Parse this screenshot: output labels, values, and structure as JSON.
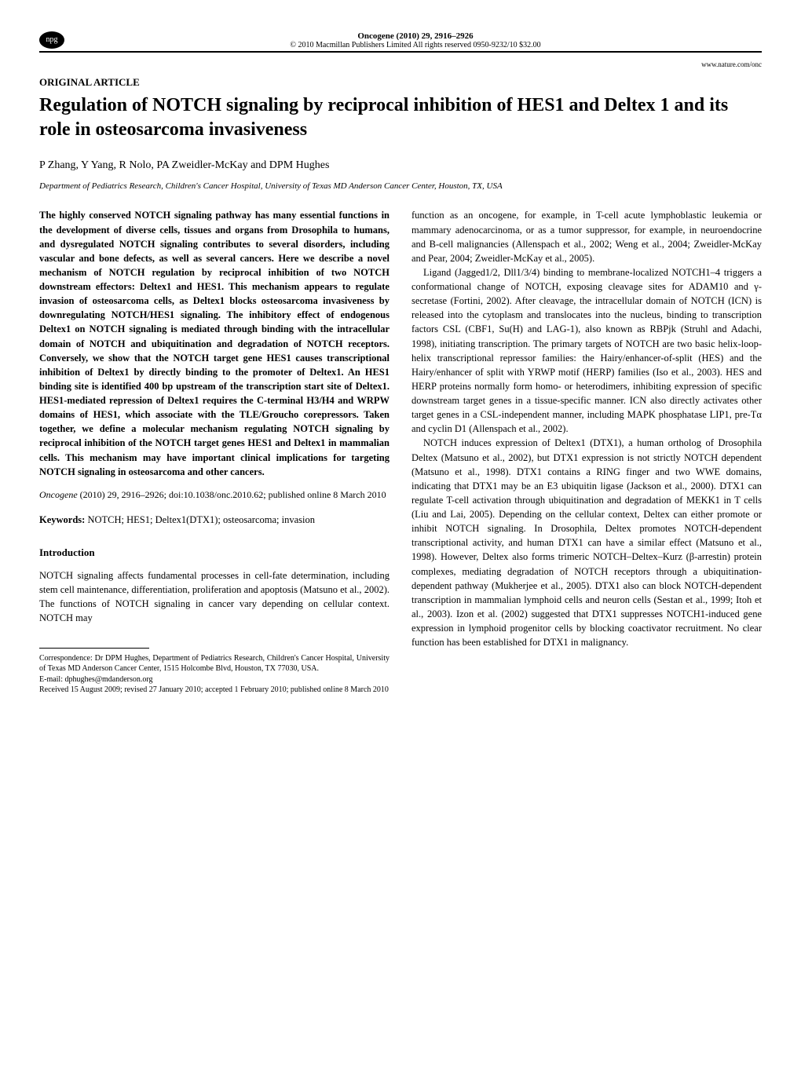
{
  "header": {
    "badge": "npg",
    "journal_line": "Oncogene (2010) 29, 2916–2926",
    "copyright": "© 2010 Macmillan Publishers Limited   All rights reserved 0950-9232/10 $32.00",
    "url": "www.nature.com/onc"
  },
  "article_type": "ORIGINAL ARTICLE",
  "title": "Regulation of NOTCH signaling by reciprocal inhibition of HES1 and Deltex 1 and its role in osteosarcoma invasiveness",
  "authors": "P Zhang, Y Yang, R Nolo, PA Zweidler-McKay and DPM Hughes",
  "affiliation": "Department of Pediatrics Research, Children's Cancer Hospital, University of Texas MD Anderson Cancer Center, Houston, TX, USA",
  "abstract": "The highly conserved NOTCH signaling pathway has many essential functions in the development of diverse cells, tissues and organs from Drosophila to humans, and dysregulated NOTCH signaling contributes to several disorders, including vascular and bone defects, as well as several cancers. Here we describe a novel mechanism of NOTCH regulation by reciprocal inhibition of two NOTCH downstream effectors: Deltex1 and HES1. This mechanism appears to regulate invasion of osteosarcoma cells, as Deltex1 blocks osteosarcoma invasiveness by downregulating NOTCH/HES1 signaling. The inhibitory effect of endogenous Deltex1 on NOTCH signaling is mediated through binding with the intracellular domain of NOTCH and ubiquitination and degradation of NOTCH receptors. Conversely, we show that the NOTCH target gene HES1 causes transcriptional inhibition of Deltex1 by directly binding to the promoter of Deltex1. An HES1 binding site is identified 400 bp upstream of the transcription start site of Deltex1. HES1-mediated repression of Deltex1 requires the C-terminal H3/H4 and WRPW domains of HES1, which associate with the TLE/Groucho corepressors. Taken together, we define a molecular mechanism regulating NOTCH signaling by reciprocal inhibition of the NOTCH target genes HES1 and Deltex1 in mammalian cells. This mechanism may have important clinical implications for targeting NOTCH signaling in osteosarcoma and other cancers.",
  "citation": {
    "journal": "Oncogene",
    "rest": " (2010) 29, 2916–2926; doi:10.1038/onc.2010.62; published online 8 March 2010"
  },
  "keywords_label": "Keywords:",
  "keywords": " NOTCH; HES1; Deltex1(DTX1); osteosarcoma; invasion",
  "section_intro": "Introduction",
  "left_body_p1": "NOTCH signaling affects fundamental processes in cell-fate determination, including stem cell maintenance, differentiation, proliferation and apoptosis (Matsuno et al., 2002). The functions of NOTCH signaling in cancer vary depending on cellular context. NOTCH may",
  "right_body_p1": "function as an oncogene, for example, in T-cell acute lymphoblastic leukemia or mammary adenocarcinoma, or as a tumor suppressor, for example, in neuroendocrine and B-cell malignancies (Allenspach et al., 2002; Weng et al., 2004; Zweidler-McKay and Pear, 2004; Zweidler-McKay et al., 2005).",
  "right_body_p2": "Ligand (Jagged1/2, Dll1/3/4) binding to membrane-localized NOTCH1–4 triggers a conformational change of NOTCH, exposing cleavage sites for ADAM10 and γ-secretase (Fortini, 2002). After cleavage, the intracellular domain of NOTCH (ICN) is released into the cytoplasm and translocates into the nucleus, binding to transcription factors CSL (CBF1, Su(H) and LAG-1), also known as RBPjk (Struhl and Adachi, 1998), initiating transcription. The primary targets of NOTCH are two basic helix-loop-helix transcriptional repressor families: the Hairy/enhancer-of-split (HES) and the Hairy/enhancer of split with YRWP motif (HERP) families (Iso et al., 2003). HES and HERP proteins normally form homo- or heterodimers, inhibiting expression of specific downstream target genes in a tissue-specific manner. ICN also directly activates other target genes in a CSL-independent manner, including MAPK phosphatase LIP1, pre-Tα and cyclin D1 (Allenspach et al., 2002).",
  "right_body_p3": "NOTCH induces expression of Deltex1 (DTX1), a human ortholog of Drosophila Deltex (Matsuno et al., 2002), but DTX1 expression is not strictly NOTCH dependent (Matsuno et al., 1998). DTX1 contains a RING finger and two WWE domains, indicating that DTX1 may be an E3 ubiquitin ligase (Jackson et al., 2000). DTX1 can regulate T-cell activation through ubiquitination and degradation of MEKK1 in T cells (Liu and Lai, 2005). Depending on the cellular context, Deltex can either promote or inhibit NOTCH signaling. In Drosophila, Deltex promotes NOTCH-dependent transcriptional activity, and human DTX1 can have a similar effect (Matsuno et al., 1998). However, Deltex also forms trimeric NOTCH–Deltex–Kurz (β-arrestin) protein complexes, mediating degradation of NOTCH receptors through a ubiquitination-dependent pathway (Mukherjee et al., 2005). DTX1 also can block NOTCH-dependent transcription in mammalian lymphoid cells and neuron cells (Sestan et al., 1999; Itoh et al., 2003). Izon et al. (2002) suggested that DTX1 suppresses NOTCH1-induced gene expression in lymphoid progenitor cells by blocking coactivator recruitment. No clear function has been established for DTX1 in malignancy.",
  "corr": {
    "line1": "Correspondence: Dr DPM Hughes, Department of Pediatrics Research, Children's Cancer Hospital, University of Texas MD Anderson Cancer Center, 1515 Holcombe Blvd, Houston, TX 77030, USA.",
    "email": "E-mail: dphughes@mdanderson.org",
    "received": "Received 15 August 2009; revised 27 January 2010; accepted 1 February 2010; published online 8 March 2010"
  }
}
